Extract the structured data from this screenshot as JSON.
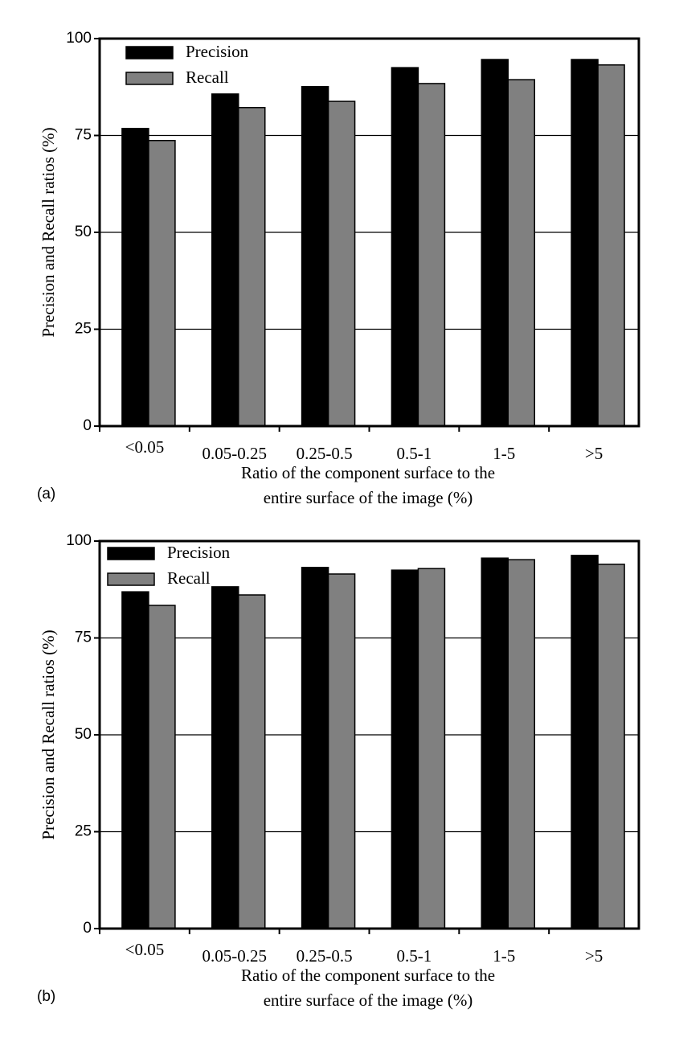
{
  "chart_data": [
    {
      "type": "bar",
      "panel_label": "(a)",
      "ylabel": "Precision and Recall ratios (%)",
      "xlabel": [
        "Ratio of the component surface to the",
        "entire surface of the image (%)"
      ],
      "categories": [
        "<0.05",
        "0.05-0.25",
        "0.25-0.5",
        "0.5-1",
        "1-5",
        ">5"
      ],
      "series": [
        {
          "name": "Precision",
          "color": "#000000",
          "values": [
            76.8,
            85.7,
            87.6,
            92.5,
            94.6,
            94.6
          ]
        },
        {
          "name": "Recall",
          "color": "#808080",
          "values": [
            73.7,
            82.2,
            83.8,
            88.4,
            89.4,
            93.2
          ]
        }
      ],
      "ylim": [
        0,
        100
      ],
      "yticks": [
        0,
        25,
        50,
        75,
        100
      ],
      "grid": true
    },
    {
      "type": "bar",
      "panel_label": "(b)",
      "ylabel": "Precision and Recall ratios (%)",
      "xlabel": [
        "Ratio of the component surface to the",
        "entire surface of the image (%)"
      ],
      "categories": [
        "<0.05",
        "0.05-0.25",
        "0.25-0.5",
        "0.5-1",
        "1-5",
        ">5"
      ],
      "series": [
        {
          "name": "Precision",
          "color": "#000000",
          "values": [
            86.9,
            88.2,
            93.2,
            92.5,
            95.6,
            96.3
          ]
        },
        {
          "name": "Recall",
          "color": "#808080",
          "values": [
            83.4,
            86.1,
            91.5,
            92.9,
            95.2,
            94.0
          ]
        }
      ],
      "ylim": [
        0,
        100
      ],
      "yticks": [
        0,
        25,
        50,
        75,
        100
      ],
      "grid": true
    }
  ]
}
